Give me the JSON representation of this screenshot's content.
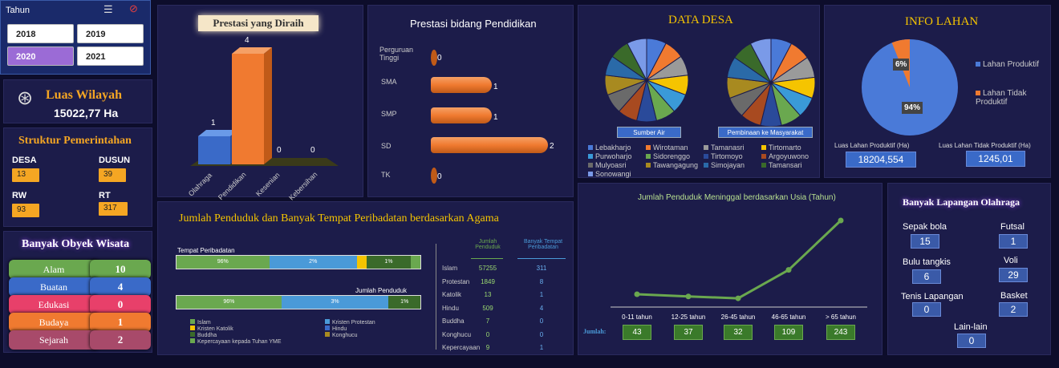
{
  "slicer": {
    "title": "Tahun",
    "years": [
      "2018",
      "2019",
      "2020",
      "2021"
    ],
    "selected": "2020"
  },
  "luas": {
    "title": "Luas Wilayah",
    "value": "15022,77 Ha"
  },
  "struktur": {
    "title": "Struktur Pemerintahan",
    "items": [
      {
        "label": "DESA",
        "value": "13"
      },
      {
        "label": "DUSUN",
        "value": "39"
      },
      {
        "label": "RW",
        "value": "93"
      },
      {
        "label": "RT",
        "value": "317"
      }
    ]
  },
  "wisata": {
    "title": "Banyak Obyek Wisata",
    "items": [
      {
        "label": "Alam",
        "value": "10",
        "color": "#6aa84f"
      },
      {
        "label": "Buatan",
        "value": "4",
        "color": "#3a6ac8"
      },
      {
        "label": "Edukasi",
        "value": "0",
        "color": "#e8406a"
      },
      {
        "label": "Budaya",
        "value": "1",
        "color": "#f07a30"
      },
      {
        "label": "Sejarah",
        "value": "2",
        "color": "#a84a6a"
      }
    ]
  },
  "prestasi": {
    "title": "Prestasi yang Diraih",
    "categories": [
      "Olahraga",
      "Pendidikan",
      "Kesenian",
      "Kebersihan"
    ],
    "values": [
      "1",
      "4",
      "0",
      "0"
    ]
  },
  "pendidikan": {
    "title": "Prestasi bidang Pendidikan",
    "categories": [
      "Perguruan Tinggi",
      "SMA",
      "SMP",
      "SD",
      "TK"
    ],
    "values": [
      "0",
      "1",
      "1",
      "2",
      "0"
    ]
  },
  "desa": {
    "title": "DATA DESA",
    "pie1_label": "Sumber Air",
    "pie2_label": "Pembinaan ke Masyarakat",
    "legend": [
      "Lebakharjo",
      "Wirotaman",
      "Tamanasri",
      "Tirtomarto",
      "Purwoharjo",
      "Sidorenggo",
      "Tirtomoyo",
      "Argoyuwono",
      "Mulyoasri",
      "Tawangagung",
      "Simojayan",
      "Tamansari",
      "Sonowangi"
    ],
    "colors": [
      "#4a7ad8",
      "#f07a30",
      "#9a9a9a",
      "#f5c400",
      "#3a9ad8",
      "#6aa84f",
      "#2a4a9a",
      "#a84a20",
      "#6a6a6a",
      "#a88a20",
      "#2a6aa8",
      "#3a6a2a",
      "#7a9ae8"
    ]
  },
  "lahan": {
    "title": "INFO LAHAN",
    "legend": [
      "Lahan Produktif",
      "Lahan Tidak Produktif"
    ],
    "pct_prod": "94%",
    "pct_tidak": "6%",
    "label_prod": "Luas Lahan Produktif (Ha)",
    "label_tidak": "Luas Lahan Tidak Produktif (Ha)",
    "value_prod": "18204,554",
    "value_tidak": "1245,01"
  },
  "agama": {
    "title": "Jumlah Penduduk dan Banyak Tempat Peribadatan berdasarkan Agama",
    "bar1_label": "Tempat Peribadatan",
    "bar1_pcts": [
      "96%",
      "2%",
      "1%"
    ],
    "bar2_label": "Jumlah Penduduk",
    "bar2_pcts": [
      "96%",
      "3%",
      "1%"
    ],
    "legend": [
      "Islam",
      "Kristen Protestan",
      "Kristen Katolik",
      "Hindu",
      "Buddha",
      "Konghucu",
      "Kepercayaan kepada Tuhan YME"
    ],
    "col1": "Jumlah Penduduk",
    "col2": "Banyak Tempat Peribadatan",
    "rows": [
      {
        "agama": "Islam",
        "penduduk": "57255",
        "tempat": "311"
      },
      {
        "agama": "Protestan",
        "penduduk": "1849",
        "tempat": "8"
      },
      {
        "agama": "Katolik",
        "penduduk": "13",
        "tempat": "1"
      },
      {
        "agama": "Hindu",
        "penduduk": "509",
        "tempat": "4"
      },
      {
        "agama": "Buddha",
        "penduduk": "7",
        "tempat": "0"
      },
      {
        "agama": "Konghucu",
        "penduduk": "0",
        "tempat": "0"
      },
      {
        "agama": "Kepercayaan",
        "penduduk": "9",
        "tempat": "1"
      }
    ]
  },
  "meninggal": {
    "title": "Jumlah Penduduk Meninggal berdasarkan Usia (Tahun)",
    "jumlah_label": "Jumlah:",
    "categories": [
      "0-11 tahun",
      "12-25 tahun",
      "26-45 tahun",
      "46-65 tahun",
      "> 65 tahun"
    ],
    "values": [
      "43",
      "37",
      "32",
      "109",
      "243"
    ]
  },
  "chart_data": {
    "type": "line",
    "categories": [
      "0-11 tahun",
      "12-25 tahun",
      "26-45 tahun",
      "46-65 tahun",
      "> 65 tahun"
    ],
    "values": [
      43,
      37,
      32,
      109,
      243
    ],
    "title": "Jumlah Penduduk Meninggal berdasarkan Usia (Tahun)"
  },
  "lapangan": {
    "title": "Banyak Lapangan Olahraga",
    "items": [
      {
        "label": "Sepak bola",
        "value": "15"
      },
      {
        "label": "Futsal",
        "value": "1"
      },
      {
        "label": "Bulu tangkis",
        "value": "6"
      },
      {
        "label": "Voli",
        "value": "29"
      },
      {
        "label": "Tenis Lapangan",
        "value": "0"
      },
      {
        "label": "Basket",
        "value": "2"
      },
      {
        "label": "Lain-lain",
        "value": "0"
      }
    ]
  }
}
